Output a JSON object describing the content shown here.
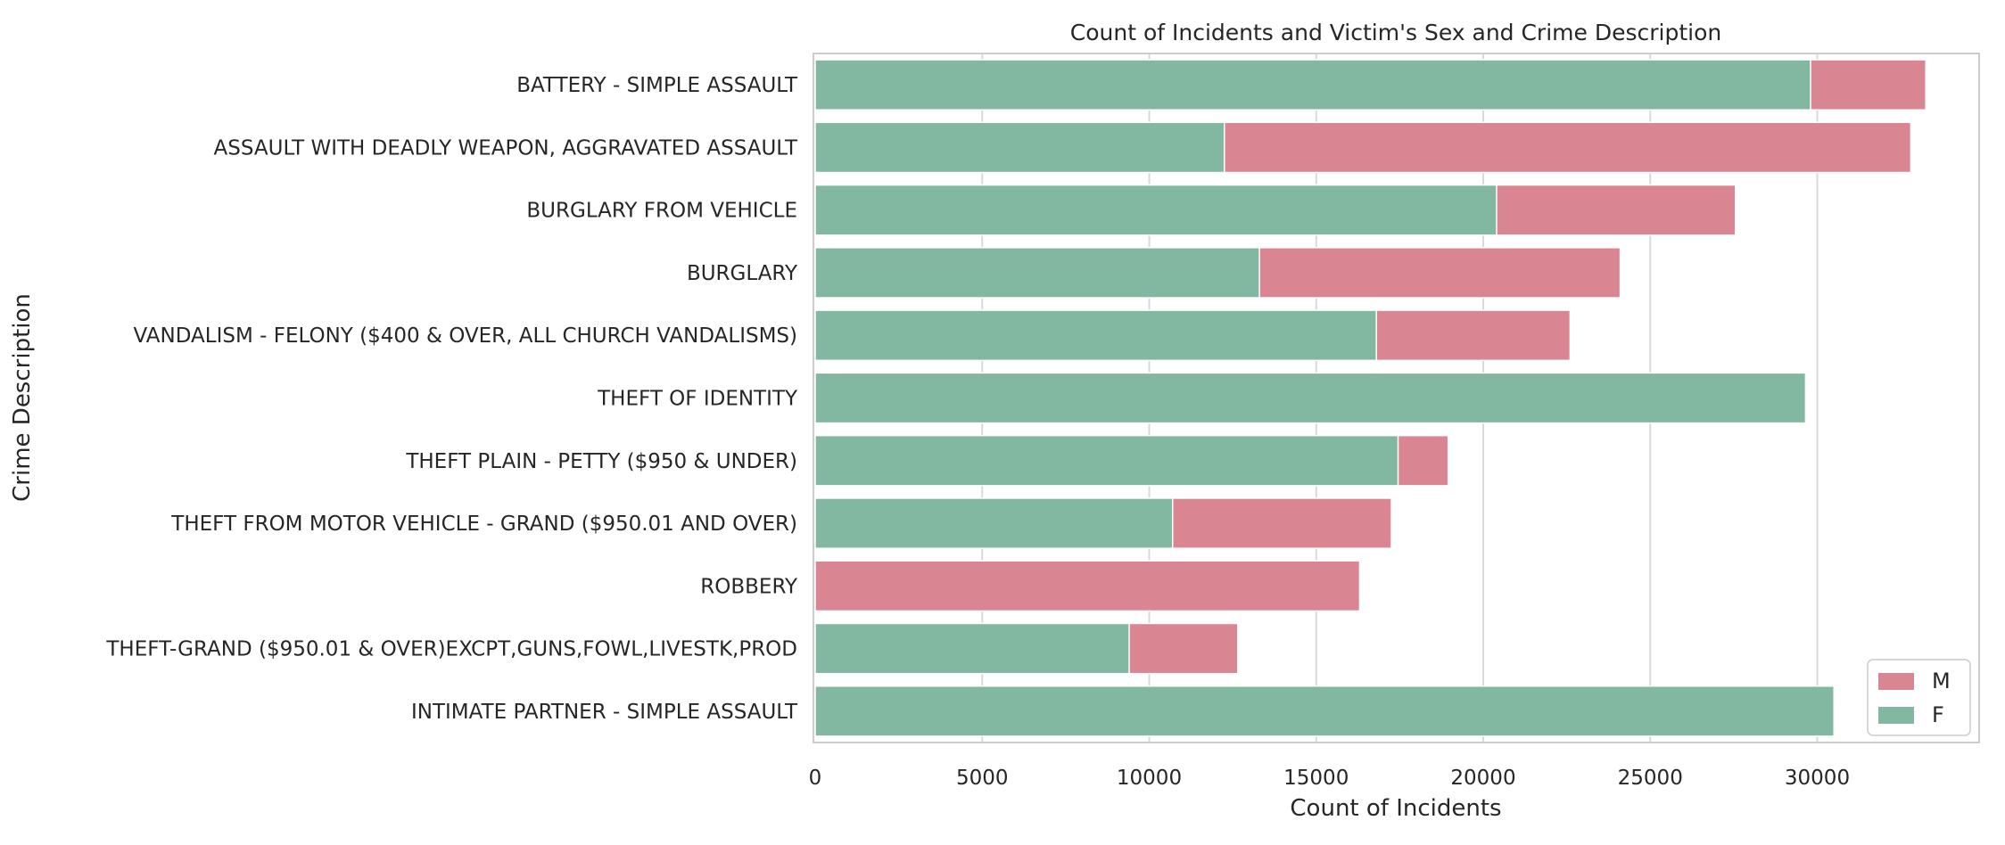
{
  "chart_data": {
    "type": "bar",
    "orientation": "horizontal",
    "stacked": "overlay",
    "title": "Count of Incidents and Victim's Sex and Crime Description",
    "xlabel": "Count of Incidents",
    "ylabel": "Crime Description",
    "xlim": [
      0,
      35000
    ],
    "xticks": [
      0,
      5000,
      10000,
      15000,
      20000,
      25000,
      30000
    ],
    "grid": "vertical",
    "legend_position": "bottom-right",
    "categories": [
      "BATTERY - SIMPLE ASSAULT",
      "ASSAULT WITH DEADLY WEAPON, AGGRAVATED ASSAULT",
      "BURGLARY FROM VEHICLE",
      "BURGLARY",
      "VANDALISM - FELONY ($400 & OVER, ALL CHURCH VANDALISMS)",
      "THEFT OF IDENTITY",
      "THEFT PLAIN - PETTY ($950 & UNDER)",
      "THEFT FROM MOTOR VEHICLE - GRAND ($950.01 AND OVER)",
      "ROBBERY",
      "THEFT-GRAND ($950.01 & OVER)EXCPT,GUNS,FOWL,LIVESTK,PROD",
      "INTIMATE PARTNER - SIMPLE ASSAULT"
    ],
    "series": [
      {
        "name": "M",
        "color": "#d98592",
        "values": [
          33250,
          32800,
          27550,
          24100,
          22600,
          0,
          18950,
          17250,
          16300,
          12650,
          0
        ]
      },
      {
        "name": "F",
        "color": "#82b7a1",
        "values": [
          29800,
          12250,
          20400,
          13300,
          16800,
          29650,
          17450,
          10700,
          0,
          9400,
          30500
        ]
      }
    ]
  }
}
